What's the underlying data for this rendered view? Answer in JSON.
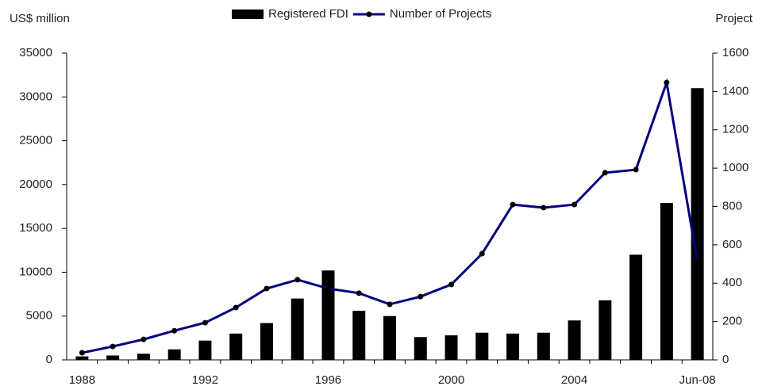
{
  "chart_data": {
    "type": "bar-line",
    "y_label": "US$ million",
    "y2_label": "Project",
    "categories": [
      "1988",
      null,
      null,
      null,
      "1992",
      null,
      null,
      null,
      "1996",
      null,
      null,
      null,
      "2000",
      null,
      null,
      null,
      "2004",
      null,
      null,
      null,
      "Jun-08"
    ],
    "series": [
      {
        "name": "Registered FDI",
        "color": "#000000",
        "type": "bar",
        "values": [
          400,
          500,
          700,
          1200,
          2200,
          3000,
          4200,
          7000,
          10200,
          5600,
          5000,
          2600,
          2800,
          3100,
          3000,
          3100,
          4500,
          6800,
          12000,
          17900,
          31000
        ]
      },
      {
        "name": "Number of Projects",
        "color": "#000080",
        "type": "line",
        "axis": "y2",
        "values": [
          37,
          70,
          107,
          152,
          194,
          273,
          372,
          418,
          372,
          348,
          290,
          330,
          393,
          554,
          810,
          794,
          810,
          976,
          992,
          1446,
          512
        ]
      }
    ],
    "ylim": [
      0,
      35000
    ],
    "yticks": [
      0,
      5000,
      10000,
      15000,
      20000,
      25000,
      30000,
      35000
    ],
    "y2lim": [
      0,
      1600
    ],
    "y2ticks": [
      0,
      200,
      400,
      600,
      800,
      1000,
      1200,
      1400,
      1600
    ]
  }
}
